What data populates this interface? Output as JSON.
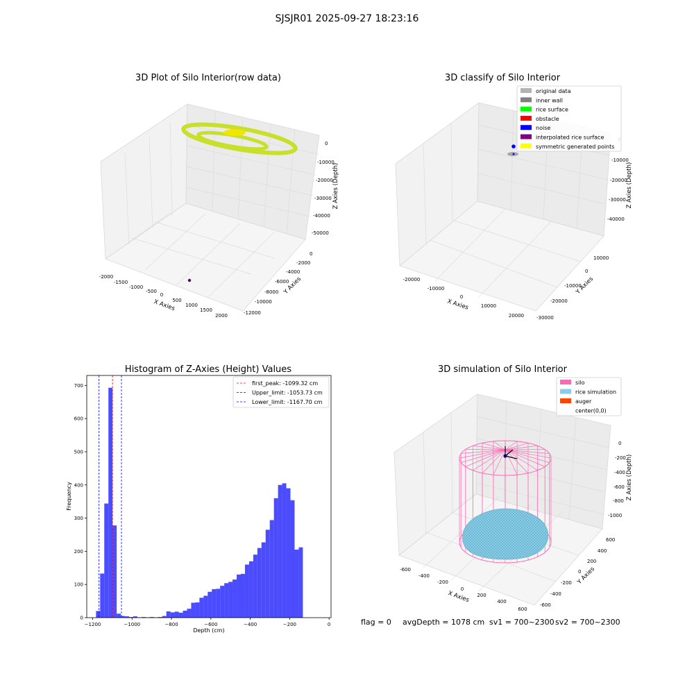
{
  "suptitle": "SJSJR01 2025-09-27 18:23:16",
  "panels": {
    "raw": {
      "title": "3D Plot of Silo Interior(row data)",
      "x_label": "X Axies",
      "y_label": "Y Axies",
      "z_label": "Z Axies (Depth)",
      "x_ticks": [
        "-2000",
        "-1500",
        "-1000",
        "-500",
        "0",
        "500",
        "1000",
        "1500",
        "2000"
      ],
      "y_ticks": [
        "0",
        "-2000",
        "-4000",
        "-6000",
        "-8000",
        "-10000",
        "-12000"
      ],
      "z_ticks": [
        "0",
        "-10000",
        "-20000",
        "-30000",
        "-40000",
        "-50000"
      ]
    },
    "classify": {
      "title": "3D classify of Silo Interior",
      "x_label": "X Axies",
      "y_label": "Y Axies",
      "z_label": "Z Axies (Depth)",
      "x_ticks": [
        "-20000",
        "-10000",
        "0",
        "10000",
        "20000"
      ],
      "y_ticks": [
        "10000",
        "0",
        "-10000",
        "-20000",
        "-30000"
      ],
      "z_ticks": [
        "0",
        "-10000",
        "-20000",
        "-30000",
        "-40000"
      ],
      "legend": [
        {
          "label": "original data",
          "color": "#b3b3b3"
        },
        {
          "label": "inner wall",
          "color": "#808080"
        },
        {
          "label": "rice surface",
          "color": "#00ff00"
        },
        {
          "label": "obstacle",
          "color": "#ff0000"
        },
        {
          "label": "noise",
          "color": "#0000ff"
        },
        {
          "label": "interpolated rice surface",
          "color": "#800080"
        },
        {
          "label": "symmetric generated points",
          "color": "#ffff00"
        }
      ]
    },
    "simulation": {
      "title": "3D simulation of Silo Interior",
      "x_label": "X Axies",
      "y_label": "Y Axies",
      "z_label": "Z Axies (Depth)",
      "x_ticks": [
        "-600",
        "-400",
        "-200",
        "0",
        "200",
        "400",
        "600"
      ],
      "y_ticks": [
        "600",
        "400",
        "200",
        "0",
        "-200",
        "-400",
        "-600"
      ],
      "z_ticks": [
        "0",
        "-200",
        "-400",
        "-600",
        "-800",
        "-1000"
      ],
      "legend": [
        {
          "label": "silo",
          "color": "#ff69b4"
        },
        {
          "label": "rice simulation",
          "color": "#87ceeb"
        },
        {
          "label": "auger",
          "color": "#ff4500"
        },
        {
          "label": "center(0,0)",
          "color": ""
        }
      ],
      "silo_color": "#ff69b4",
      "rice_color": "#87ceeb"
    }
  },
  "status": {
    "flag": "flag = 0",
    "avg_depth": "avgDepth = 1078 cm",
    "sv1": "sv1 = 700~2300",
    "sv2": "sv2 = 700~2300"
  },
  "chart_data": {
    "type": "bar",
    "title": "Histogram of Z-Axies (Height) Values",
    "xlabel": "Depth (cm)",
    "ylabel": "Frequency",
    "xlim": [
      -1230,
      10
    ],
    "ylim": [
      0,
      730
    ],
    "x_ticks": [
      -1200,
      -1000,
      -800,
      -600,
      -400,
      -200,
      0
    ],
    "y_ticks": [
      0,
      100,
      200,
      300,
      400,
      500,
      600,
      700
    ],
    "bar_color": "#0000ff",
    "bin_width": 21,
    "bins_start": [
      -1183,
      -1162,
      -1141,
      -1120,
      -1099,
      -1078,
      -1057,
      -1036,
      -1015,
      -994,
      -973,
      -952,
      -931,
      -910,
      -889,
      -868,
      -847,
      -826,
      -805,
      -784,
      -763,
      -742,
      -721,
      -700,
      -679,
      -658,
      -637,
      -616,
      -595,
      -574,
      -553,
      -532,
      -511,
      -490,
      -469,
      -448,
      -427,
      -406,
      -385,
      -364,
      -343,
      -322,
      -301,
      -280,
      -259,
      -238,
      -217,
      -196,
      -175,
      -154,
      -133,
      -112,
      -91,
      -70,
      -49,
      -28
    ],
    "values": [
      20,
      133,
      344,
      693,
      278,
      12,
      5,
      4,
      2,
      4,
      1,
      2,
      1,
      2,
      1,
      2,
      5,
      19,
      16,
      18,
      15,
      21,
      27,
      45,
      46,
      60,
      66,
      78,
      86,
      87,
      96,
      104,
      108,
      115,
      130,
      132,
      160,
      170,
      190,
      210,
      227,
      265,
      294,
      360,
      400,
      405,
      390,
      354,
      205,
      212,
      0,
      0,
      0,
      0,
      0,
      0
    ],
    "vlines": [
      {
        "name": "first_peak: -1099.32 cm",
        "value": -1099.32,
        "color": "#ff0000"
      },
      {
        "name": "Upper_limit: -1053.73 cm",
        "value": -1053.73,
        "color": "#0000ff"
      },
      {
        "name": "Lower_limit: -1167.70 cm",
        "value": -1167.7,
        "color": "#0000ff"
      }
    ]
  }
}
